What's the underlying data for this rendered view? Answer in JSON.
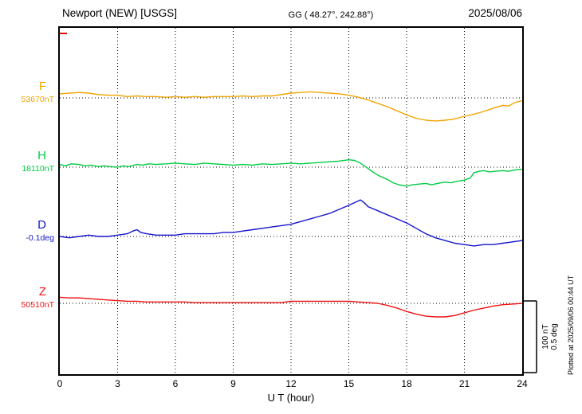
{
  "header": {
    "station": "Newport (NEW)  [USGS]",
    "coords": "GG ( 48.27°, 242.88°)",
    "date": "2025/08/06"
  },
  "footer_rotated": "Plotted at 2025/09/06 00:44 UT",
  "scale_bar": {
    "line1": "100 nT",
    "line2": "0.5 deg"
  },
  "chart_data": {
    "type": "line",
    "title": "Newport (NEW) [USGS] magnetogram 2025/08/06",
    "xlabel": "U T (hour)",
    "x_range": [
      0,
      24
    ],
    "x_ticks": [
      0,
      3,
      6,
      9,
      12,
      15,
      18,
      21,
      24
    ],
    "x_gridlines": [
      3,
      6,
      9,
      12,
      15,
      18,
      21
    ],
    "grid": "dotted",
    "scale": {
      "nT_per_div": 100,
      "deg_per_div": 0.5
    },
    "note": "points are [UT hour, offset from baseline] in the series unit",
    "series": [
      {
        "name": "F",
        "unit": "nT",
        "baseline_label": "53670nT",
        "baseline_value": 53670,
        "color": "#f0a400",
        "points": [
          [
            0,
            6
          ],
          [
            0.5,
            7
          ],
          [
            1,
            8
          ],
          [
            1.5,
            7
          ],
          [
            2,
            5
          ],
          [
            2.5,
            4
          ],
          [
            3,
            4
          ],
          [
            3.5,
            2
          ],
          [
            4,
            3
          ],
          [
            4.5,
            2
          ],
          [
            5,
            2
          ],
          [
            5.5,
            1
          ],
          [
            6,
            2
          ],
          [
            6.5,
            1
          ],
          [
            7,
            2
          ],
          [
            7.5,
            1
          ],
          [
            8,
            2
          ],
          [
            8.5,
            2
          ],
          [
            9,
            2
          ],
          [
            9.5,
            3
          ],
          [
            10,
            2
          ],
          [
            10.5,
            3
          ],
          [
            11,
            3
          ],
          [
            11.5,
            5
          ],
          [
            12,
            7
          ],
          [
            12.5,
            8
          ],
          [
            13,
            9
          ],
          [
            13.5,
            8
          ],
          [
            14,
            7
          ],
          [
            14.5,
            6
          ],
          [
            15,
            4
          ],
          [
            15.5,
            1
          ],
          [
            16,
            -3
          ],
          [
            16.5,
            -8
          ],
          [
            17,
            -13
          ],
          [
            17.5,
            -19
          ],
          [
            18,
            -25
          ],
          [
            18.5,
            -30
          ],
          [
            19,
            -33
          ],
          [
            19.5,
            -34
          ],
          [
            20,
            -33
          ],
          [
            20.5,
            -31
          ],
          [
            21,
            -27
          ],
          [
            21.5,
            -24
          ],
          [
            22,
            -20
          ],
          [
            22.5,
            -15
          ],
          [
            23,
            -11
          ],
          [
            23.3,
            -12
          ],
          [
            23.6,
            -7
          ],
          [
            24,
            -4
          ]
        ]
      },
      {
        "name": "H",
        "unit": "nT",
        "baseline_label": "18110nT",
        "baseline_value": 18110,
        "color": "#00cc44",
        "points": [
          [
            0,
            4
          ],
          [
            0.3,
            2
          ],
          [
            0.6,
            5
          ],
          [
            1,
            4
          ],
          [
            1.3,
            2
          ],
          [
            1.6,
            3
          ],
          [
            2,
            1
          ],
          [
            2.3,
            2
          ],
          [
            2.6,
            1
          ],
          [
            3,
            0
          ],
          [
            3.3,
            2
          ],
          [
            3.6,
            1
          ],
          [
            4,
            4
          ],
          [
            4.3,
            3
          ],
          [
            4.6,
            5
          ],
          [
            5,
            4
          ],
          [
            5.5,
            5
          ],
          [
            6,
            6
          ],
          [
            6.5,
            5
          ],
          [
            7,
            4
          ],
          [
            7.5,
            6
          ],
          [
            8,
            5
          ],
          [
            8.5,
            4
          ],
          [
            9,
            3
          ],
          [
            9.5,
            4
          ],
          [
            10,
            3
          ],
          [
            10.5,
            5
          ],
          [
            11,
            4
          ],
          [
            11.5,
            5
          ],
          [
            12,
            6
          ],
          [
            12.5,
            5
          ],
          [
            13,
            6
          ],
          [
            13.5,
            7
          ],
          [
            14,
            8
          ],
          [
            14.5,
            9
          ],
          [
            15,
            11
          ],
          [
            15.3,
            10
          ],
          [
            15.6,
            6
          ],
          [
            16,
            -2
          ],
          [
            16.3,
            -8
          ],
          [
            16.6,
            -13
          ],
          [
            17,
            -18
          ],
          [
            17.3,
            -23
          ],
          [
            17.6,
            -26
          ],
          [
            18,
            -28
          ],
          [
            18.3,
            -26
          ],
          [
            18.6,
            -25
          ],
          [
            19,
            -24
          ],
          [
            19.3,
            -26
          ],
          [
            19.6,
            -24
          ],
          [
            20,
            -22
          ],
          [
            20.3,
            -23
          ],
          [
            20.6,
            -21
          ],
          [
            21,
            -19
          ],
          [
            21.3,
            -16
          ],
          [
            21.5,
            -8
          ],
          [
            21.8,
            -6
          ],
          [
            22,
            -5
          ],
          [
            22.3,
            -7
          ],
          [
            22.6,
            -6
          ],
          [
            23,
            -5
          ],
          [
            23.3,
            -6
          ],
          [
            23.6,
            -4
          ],
          [
            24,
            -3
          ]
        ]
      },
      {
        "name": "D",
        "unit": "deg",
        "baseline_label": "-0.1deg",
        "baseline_value": -0.1,
        "color": "#1414cc",
        "points": [
          [
            0,
            0
          ],
          [
            0.5,
            -0.01
          ],
          [
            1,
            0
          ],
          [
            1.5,
            0.01
          ],
          [
            2,
            0
          ],
          [
            2.5,
            0
          ],
          [
            3,
            0.01
          ],
          [
            3.5,
            0.02
          ],
          [
            3.8,
            0.04
          ],
          [
            4,
            0.05
          ],
          [
            4.2,
            0.03
          ],
          [
            4.5,
            0.02
          ],
          [
            5,
            0.01
          ],
          [
            5.5,
            0.01
          ],
          [
            6,
            0.01
          ],
          [
            6.5,
            0.02
          ],
          [
            7,
            0.02
          ],
          [
            7.5,
            0.02
          ],
          [
            8,
            0.02
          ],
          [
            8.5,
            0.03
          ],
          [
            9,
            0.03
          ],
          [
            9.5,
            0.04
          ],
          [
            10,
            0.05
          ],
          [
            10.5,
            0.06
          ],
          [
            11,
            0.07
          ],
          [
            11.5,
            0.08
          ],
          [
            12,
            0.09
          ],
          [
            12.5,
            0.11
          ],
          [
            13,
            0.13
          ],
          [
            13.5,
            0.15
          ],
          [
            14,
            0.17
          ],
          [
            14.5,
            0.2
          ],
          [
            15,
            0.23
          ],
          [
            15.3,
            0.25
          ],
          [
            15.6,
            0.27
          ],
          [
            15.8,
            0.25
          ],
          [
            16,
            0.22
          ],
          [
            16.5,
            0.19
          ],
          [
            17,
            0.16
          ],
          [
            17.5,
            0.13
          ],
          [
            18,
            0.1
          ],
          [
            18.5,
            0.06
          ],
          [
            19,
            0.02
          ],
          [
            19.5,
            -0.01
          ],
          [
            20,
            -0.03
          ],
          [
            20.5,
            -0.05
          ],
          [
            21,
            -0.06
          ],
          [
            21.5,
            -0.07
          ],
          [
            22,
            -0.06
          ],
          [
            22.5,
            -0.06
          ],
          [
            23,
            -0.05
          ],
          [
            23.5,
            -0.04
          ],
          [
            24,
            -0.03
          ]
        ]
      },
      {
        "name": "Z",
        "unit": "nT",
        "baseline_label": "50510nT",
        "baseline_value": 50510,
        "color": "#ee1111",
        "points": [
          [
            0,
            9
          ],
          [
            0.5,
            8
          ],
          [
            1,
            8
          ],
          [
            1.5,
            7
          ],
          [
            2,
            6
          ],
          [
            2.5,
            5
          ],
          [
            3,
            4
          ],
          [
            3.5,
            3
          ],
          [
            4,
            3
          ],
          [
            4.5,
            2
          ],
          [
            5,
            2
          ],
          [
            5.5,
            2
          ],
          [
            6,
            2
          ],
          [
            6.5,
            2
          ],
          [
            7,
            1
          ],
          [
            7.5,
            1
          ],
          [
            8,
            1
          ],
          [
            8.5,
            1
          ],
          [
            9,
            1
          ],
          [
            9.5,
            1
          ],
          [
            10,
            1
          ],
          [
            10.5,
            1
          ],
          [
            11,
            1
          ],
          [
            11.5,
            1
          ],
          [
            12,
            3
          ],
          [
            12.5,
            3
          ],
          [
            13,
            3
          ],
          [
            13.5,
            3
          ],
          [
            14,
            3
          ],
          [
            14.5,
            3
          ],
          [
            15,
            3
          ],
          [
            15.5,
            2
          ],
          [
            16,
            1
          ],
          [
            16.5,
            0
          ],
          [
            17,
            -3
          ],
          [
            17.5,
            -7
          ],
          [
            18,
            -12
          ],
          [
            18.5,
            -16
          ],
          [
            19,
            -19
          ],
          [
            19.5,
            -20
          ],
          [
            20,
            -20
          ],
          [
            20.5,
            -18
          ],
          [
            21,
            -14
          ],
          [
            21.5,
            -10
          ],
          [
            22,
            -7
          ],
          [
            22.5,
            -4
          ],
          [
            23,
            -2
          ],
          [
            23.5,
            -1
          ],
          [
            24,
            0
          ]
        ]
      }
    ]
  }
}
